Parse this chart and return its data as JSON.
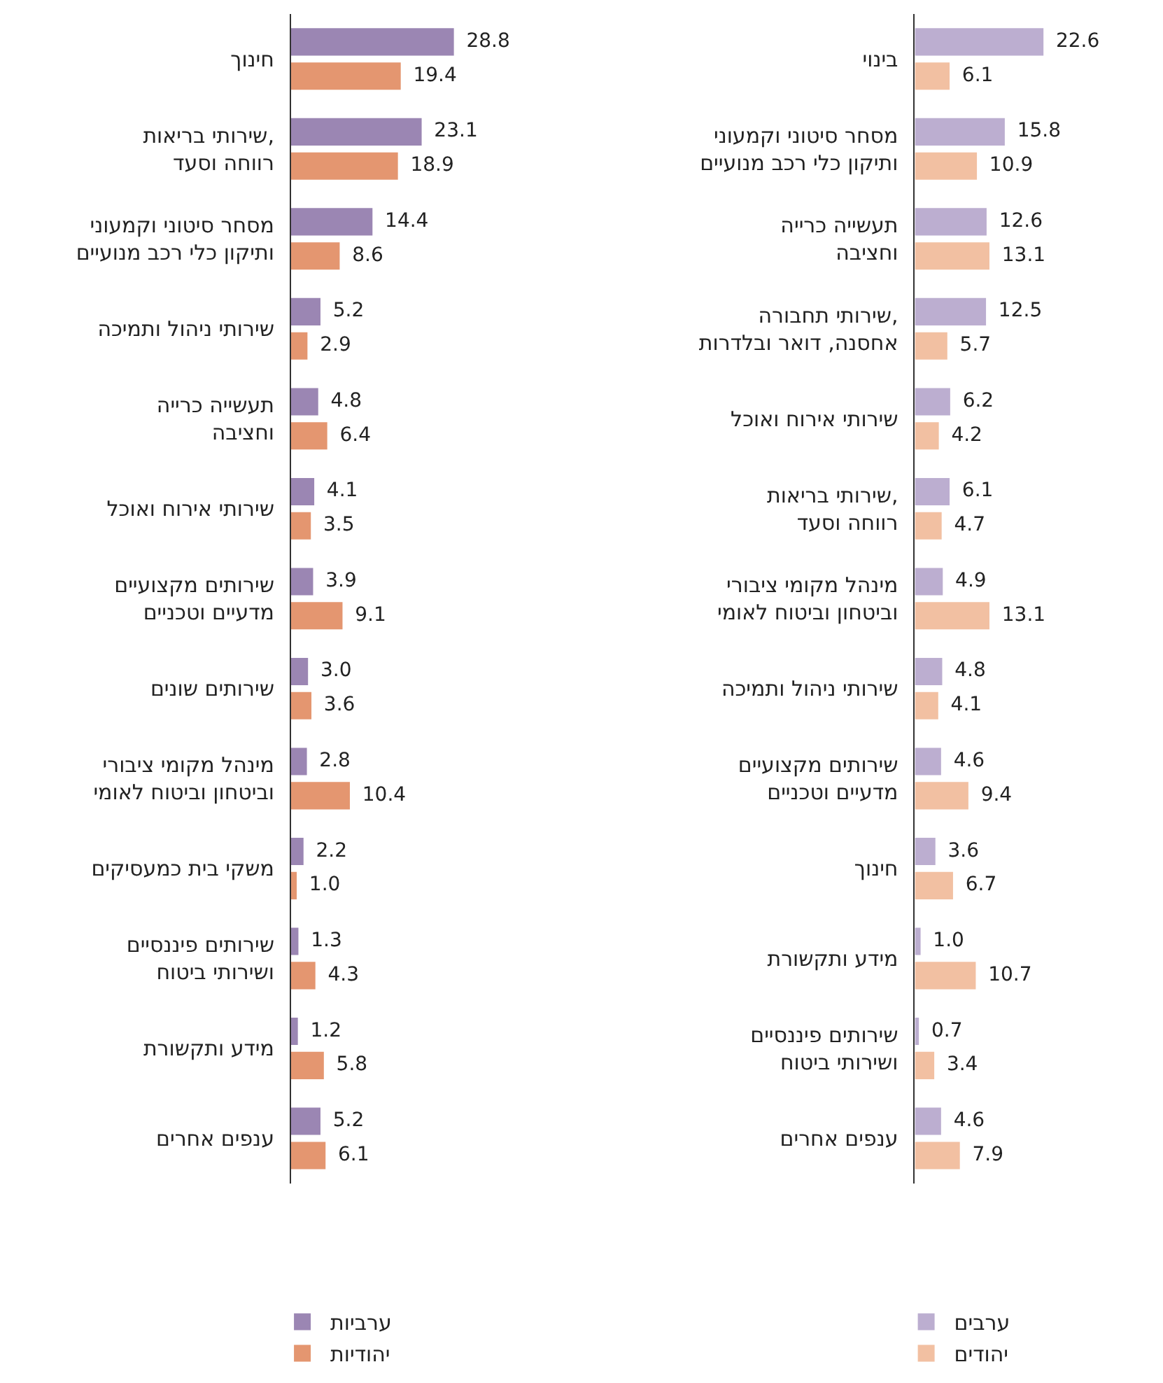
{
  "chart_data": [
    {
      "type": "bar",
      "orientation": "horizontal",
      "tick_labels": "y",
      "legend": "bottom",
      "categories": [
        "בינוי",
        "מסחר סיטוני וקמעוני\nותיקון כלי רכב מנועיים",
        "תעשייה כרייה\nוחציבה",
        "שירותי תחבורה,\nאחסנה, דואר ובלדרות",
        "שירותי אירוח ואוכל",
        "שירותי בריאות,\nרווחה וסעד",
        "מינהל מקומי ציבורי\nוביטחון וביטוח לאומי",
        "שירותי ניהול ותמיכה",
        "שירותים מקצועיים\nמדעיים וטכניים",
        "חינוך",
        "מידע ותקשורת",
        "שירותים פיננסיים\nושירותי ביטוח",
        "ענפים אחרים"
      ],
      "series": [
        {
          "name": "ערבים",
          "color": "#bcaed0",
          "values": [
            22.6,
            15.8,
            12.6,
            12.5,
            6.2,
            6.1,
            4.9,
            4.8,
            4.6,
            3.6,
            1.0,
            0.7,
            4.6
          ],
          "value_labels": [
            "22.6",
            "15.8",
            "12.6",
            "12.5",
            "6.2",
            "6.1",
            "4.9",
            "4.8",
            "4.6",
            "3.6",
            "1.0",
            "0.7",
            "4.6"
          ]
        },
        {
          "name": "יהודים",
          "color": "#f2c0a2",
          "values": [
            6.1,
            10.9,
            13.1,
            5.7,
            4.2,
            4.7,
            13.1,
            4.1,
            9.4,
            6.7,
            10.7,
            3.4,
            7.9
          ],
          "value_labels": [
            "6.1",
            "10.9",
            "13.1",
            "5.7",
            "4.2",
            "4.7",
            "13.1",
            "4.1",
            "9.4",
            "6.7",
            "10.7",
            "3.4",
            "7.9"
          ]
        }
      ]
    },
    {
      "type": "bar",
      "orientation": "horizontal",
      "tick_labels": "y",
      "legend": "bottom",
      "categories": [
        "חינוך",
        "שירותי בריאות,\nרווחה וסעד",
        "מסחר סיטוני וקמעוני\nותיקון כלי רכב מנועיים",
        "שירותי ניהול ותמיכה",
        "תעשייה כרייה\nוחציבה",
        "שירותי אירוח ואוכל",
        "שירותים מקצועיים\nמדעיים וטכניים",
        "שירותים שונים",
        "מינהל מקומי ציבורי\nוביטחון וביטוח לאומי",
        "משקי בית כמעסיקים",
        "שירותים פיננסיים\nושירותי ביטוח",
        "מידע ותקשורת",
        "ענפים אחרים"
      ],
      "series": [
        {
          "name": "ערביות",
          "color": "#9b86b3",
          "values": [
            28.8,
            23.1,
            14.4,
            5.2,
            4.8,
            4.1,
            3.9,
            3.0,
            2.8,
            2.2,
            1.3,
            1.2,
            5.2
          ],
          "value_labels": [
            "28.8",
            "23.1",
            "14.4",
            "5.2",
            "4.8",
            "4.1",
            "3.9",
            "3.0",
            "2.8",
            "2.2",
            "1.3",
            "1.2",
            "5.2"
          ]
        },
        {
          "name": "יהודיות",
          "color": "#e49670",
          "values": [
            19.4,
            18.9,
            8.6,
            2.9,
            6.4,
            3.5,
            9.1,
            3.6,
            10.4,
            1.0,
            4.3,
            5.8,
            6.1
          ],
          "value_labels": [
            "19.4",
            "18.9",
            "8.6",
            "2.9",
            "6.4",
            "3.5",
            "9.1",
            "3.6",
            "10.4",
            "1.0",
            "4.3",
            "5.8",
            "6.1"
          ]
        }
      ]
    }
  ]
}
